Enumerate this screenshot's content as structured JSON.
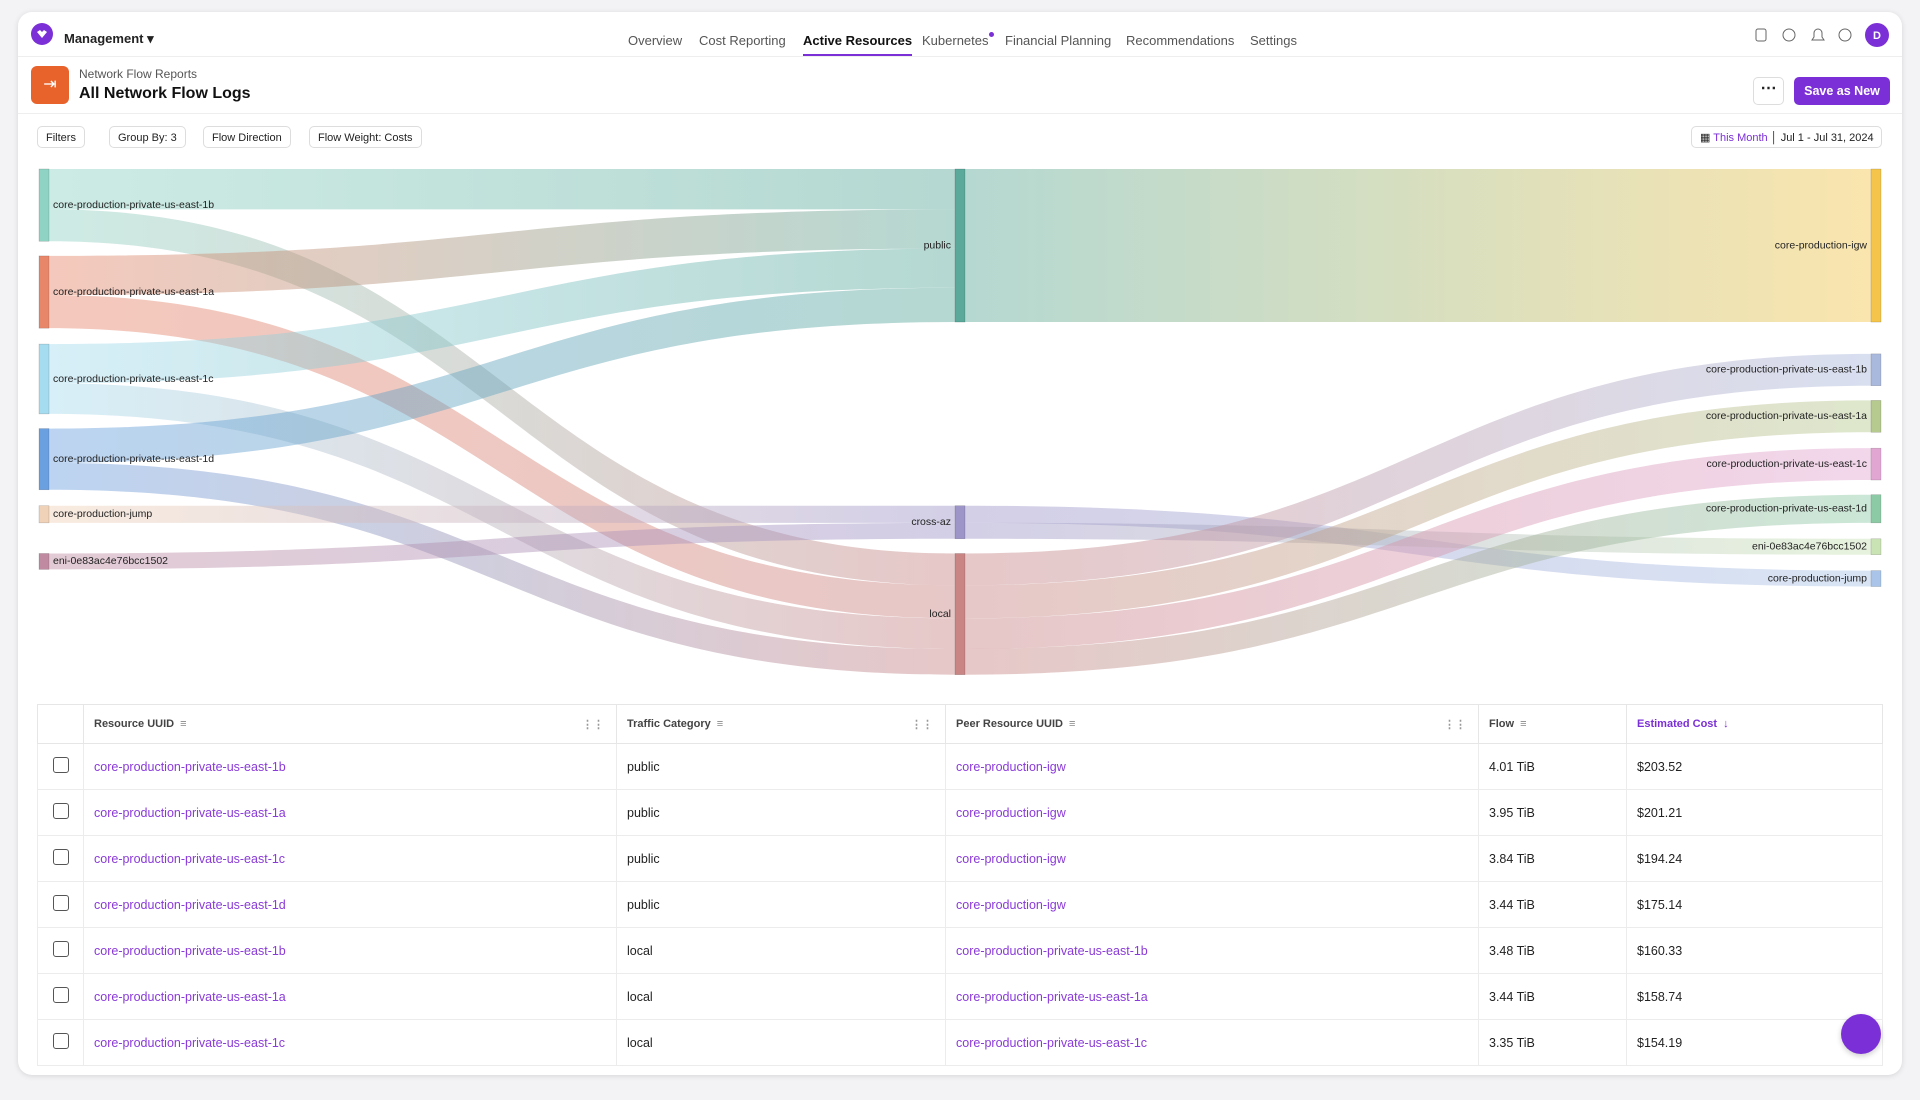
{
  "nav": {
    "brand": "Management",
    "tabs": [
      "Overview",
      "Cost Reporting",
      "Active Resources",
      "Kubernetes",
      "Financial Planning",
      "Recommendations",
      "Settings"
    ],
    "active_tab": "Active Resources",
    "avatar": "D"
  },
  "header": {
    "breadcrumb": "Network Flow Reports",
    "title": "All Network Flow Logs",
    "save_button": "Save as New"
  },
  "toolbar": {
    "filters": [
      "Filters",
      "Group By: 3",
      "Flow Direction",
      "Flow Weight: Costs"
    ],
    "date_preset": "This Month",
    "date_range": "Jul 1 - Jul 31, 2024"
  },
  "sankey": {
    "sources": [
      "core-production-private-us-east-1b",
      "core-production-private-us-east-1a",
      "core-production-private-us-east-1c",
      "core-production-private-us-east-1d",
      "core-production-jump",
      "eni-0e83ac4e76bcc1502"
    ],
    "categories": [
      "public",
      "cross-az",
      "local"
    ],
    "targets": [
      "core-production-igw",
      "core-production-private-us-east-1b",
      "core-production-private-us-east-1a",
      "core-production-private-us-east-1c",
      "core-production-private-us-east-1d",
      "eni-0e83ac4e76bcc1502",
      "core-production-jump"
    ]
  },
  "table": {
    "columns": [
      "Resource UUID",
      "Traffic Category",
      "Peer Resource UUID",
      "Flow",
      "Estimated Cost"
    ],
    "rows": [
      [
        "core-production-private-us-east-1b",
        "public",
        "core-production-igw",
        "4.01 TiB",
        "$203.52"
      ],
      [
        "core-production-private-us-east-1a",
        "public",
        "core-production-igw",
        "3.95 TiB",
        "$201.21"
      ],
      [
        "core-production-private-us-east-1c",
        "public",
        "core-production-igw",
        "3.84 TiB",
        "$194.24"
      ],
      [
        "core-production-private-us-east-1d",
        "public",
        "core-production-igw",
        "3.44 TiB",
        "$175.14"
      ],
      [
        "core-production-private-us-east-1b",
        "local",
        "core-production-private-us-east-1b",
        "3.48 TiB",
        "$160.33"
      ],
      [
        "core-production-private-us-east-1a",
        "local",
        "core-production-private-us-east-1a",
        "3.44 TiB",
        "$158.74"
      ],
      [
        "core-production-private-us-east-1c",
        "local",
        "core-production-private-us-east-1c",
        "3.35 TiB",
        "$154.19"
      ]
    ]
  }
}
